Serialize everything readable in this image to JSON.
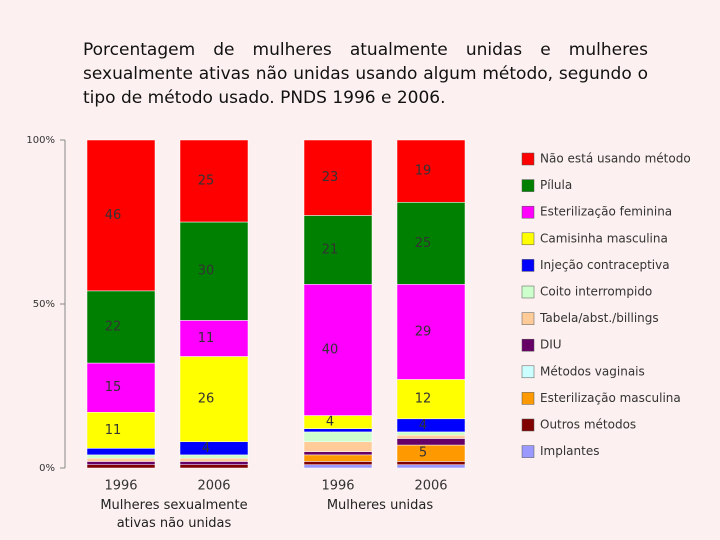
{
  "chart_data": {
    "type": "stacked_bar",
    "title": "Porcentagem de mulheres atualmente unidas e mulheres sexualmente ativas não unidas usando algum método, segundo o tipo de método usado. PNDS 1996 e 2006.",
    "categories": [
      "1996",
      "2006",
      "1996",
      "2006"
    ],
    "groups": [
      "Mulheres sexualmente ativas não unidas",
      "Mulheres unidas"
    ],
    "ylim": [
      0,
      100
    ],
    "yticks": [
      {
        "value": 0,
        "label": "0%"
      },
      {
        "value": 50,
        "label": "50%"
      },
      {
        "value": 100,
        "label": "100%"
      }
    ],
    "legend": "right",
    "series": [
      {
        "name": "Não está usando método",
        "color": "#ff0000",
        "values": [
          46,
          25,
          23,
          19
        ]
      },
      {
        "name": "Pílula",
        "color": "#008000",
        "values": [
          22,
          30,
          21,
          25
        ]
      },
      {
        "name": "Esterilização feminina",
        "color": "#ff00ff",
        "values": [
          15,
          11,
          40,
          29
        ]
      },
      {
        "name": "Camisinha masculina",
        "color": "#ffff00",
        "values": [
          11,
          26,
          4,
          12
        ]
      },
      {
        "name": "Injeção contraceptiva",
        "color": "#0000ff",
        "values": [
          2,
          4,
          1,
          4
        ]
      },
      {
        "name": "Coito interrompido",
        "color": "#ccffcc",
        "values": [
          1,
          1,
          3,
          1
        ]
      },
      {
        "name": "Tabela/abst./billings",
        "color": "#ffcc99",
        "values": [
          1,
          1,
          3,
          1
        ]
      },
      {
        "name": "DIU",
        "color": "#660066",
        "values": [
          1,
          1,
          1,
          2
        ]
      },
      {
        "name": "Métodos vaginais",
        "color": "#ccffff",
        "values": [
          0,
          0,
          0,
          0
        ]
      },
      {
        "name": "Esterilização masculina",
        "color": "#ff9900",
        "values": [
          0,
          0,
          2,
          5
        ]
      },
      {
        "name": "Outros métodos",
        "color": "#800000",
        "values": [
          1,
          1,
          1,
          1
        ]
      },
      {
        "name": "Implantes",
        "color": "#9999ff",
        "values": [
          0,
          0,
          1,
          1
        ]
      }
    ]
  }
}
